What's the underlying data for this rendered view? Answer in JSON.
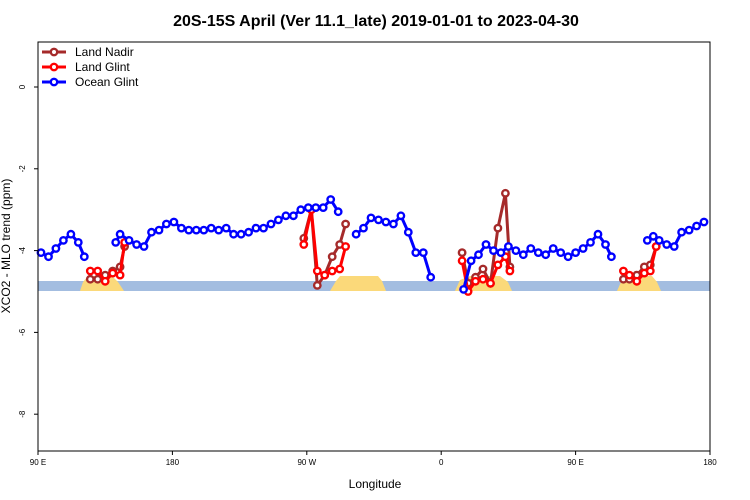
{
  "chart_data": {
    "type": "line",
    "title": "20S-15S April (Ver 11.1_late)   2019-01-01 to 2023-04-30",
    "xlabel": "Longitude",
    "ylabel": "XCO2 - MLO trend (ppm)",
    "xlim": [
      -90,
      360
    ],
    "ylim": [
      -8.9,
      1.1
    ],
    "x_ticks": [
      {
        "value": -90,
        "label": "90 E"
      },
      {
        "value": 0,
        "label": "180"
      },
      {
        "value": 90,
        "label": "90 W"
      },
      {
        "value": 180,
        "label": "0"
      },
      {
        "value": 270,
        "label": "90 E"
      },
      {
        "value": 360,
        "label": "180"
      }
    ],
    "y_ticks": [
      {
        "value": 0,
        "label": "0"
      },
      {
        "value": -2,
        "label": "-2"
      },
      {
        "value": -4,
        "label": "-4"
      },
      {
        "value": -6,
        "label": "-6"
      },
      {
        "value": -8,
        "label": "-8"
      }
    ],
    "grid": false,
    "legend_position": "top-left",
    "series": [
      {
        "name": "Land Nadir",
        "color": "#a52a2a",
        "segments": [
          [
            [
              -55,
              -4.7
            ],
            [
              -50,
              -4.7
            ],
            [
              -45,
              -4.6
            ],
            [
              -40,
              -4.5
            ],
            [
              -35,
              -4.4
            ],
            [
              -32,
              -3.9
            ]
          ],
          [
            [
              88,
              -3.7
            ],
            [
              93,
              -3.0
            ],
            [
              97,
              -4.85
            ],
            [
              102,
              -4.6
            ],
            [
              107,
              -4.15
            ],
            [
              112,
              -3.85
            ],
            [
              116,
              -3.35
            ]
          ],
          [
            [
              194,
              -4.05
            ],
            [
              198,
              -4.8
            ],
            [
              203,
              -4.65
            ],
            [
              208,
              -4.45
            ],
            [
              213,
              -4.8
            ],
            [
              218,
              -3.45
            ],
            [
              223,
              -2.6
            ],
            [
              226,
              -4.4
            ]
          ],
          [
            [
              302,
              -4.7
            ],
            [
              306,
              -4.7
            ],
            [
              311,
              -4.6
            ],
            [
              316,
              -4.4
            ],
            [
              320,
              -4.35
            ],
            [
              324,
              -3.9
            ]
          ]
        ]
      },
      {
        "name": "Land Glint",
        "color": "#ff0000",
        "segments": [
          [
            [
              -55,
              -4.5
            ],
            [
              -50,
              -4.5
            ],
            [
              -45,
              -4.75
            ],
            [
              -40,
              -4.55
            ],
            [
              -35,
              -4.6
            ],
            [
              -32,
              -3.8
            ]
          ],
          [
            [
              88,
              -3.85
            ],
            [
              93,
              -3.0
            ],
            [
              97,
              -4.5
            ],
            [
              102,
              -4.6
            ],
            [
              107,
              -4.5
            ],
            [
              112,
              -4.45
            ],
            [
              116,
              -3.9
            ]
          ],
          [
            [
              194,
              -4.25
            ],
            [
              198,
              -5.0
            ],
            [
              203,
              -4.75
            ],
            [
              208,
              -4.7
            ],
            [
              213,
              -4.8
            ],
            [
              218,
              -4.35
            ],
            [
              223,
              -4.15
            ],
            [
              226,
              -4.5
            ]
          ],
          [
            [
              302,
              -4.5
            ],
            [
              306,
              -4.6
            ],
            [
              311,
              -4.75
            ],
            [
              316,
              -4.55
            ],
            [
              320,
              -4.5
            ],
            [
              324,
              -3.9
            ]
          ]
        ]
      },
      {
        "name": "Ocean Glint",
        "color": "#0000ff",
        "segments": [
          [
            [
              -88,
              -4.05
            ],
            [
              -83,
              -4.15
            ],
            [
              -78,
              -3.95
            ],
            [
              -73,
              -3.75
            ],
            [
              -68,
              -3.6
            ],
            [
              -63,
              -3.8
            ],
            [
              -59,
              -4.15
            ]
          ],
          [
            [
              -38,
              -3.8
            ],
            [
              -35,
              -3.6
            ],
            [
              -29,
              -3.75
            ],
            [
              -24,
              -3.85
            ],
            [
              -19,
              -3.9
            ],
            [
              -14,
              -3.55
            ],
            [
              -9,
              -3.5
            ],
            [
              -4,
              -3.35
            ],
            [
              1,
              -3.3
            ],
            [
              6,
              -3.45
            ],
            [
              11,
              -3.5
            ],
            [
              16,
              -3.5
            ],
            [
              21,
              -3.5
            ],
            [
              26,
              -3.45
            ],
            [
              31,
              -3.5
            ],
            [
              36,
              -3.45
            ],
            [
              41,
              -3.6
            ],
            [
              46,
              -3.6
            ],
            [
              51,
              -3.55
            ],
            [
              56,
              -3.45
            ],
            [
              61,
              -3.45
            ],
            [
              66,
              -3.35
            ],
            [
              71,
              -3.25
            ],
            [
              76,
              -3.15
            ],
            [
              81,
              -3.15
            ],
            [
              86,
              -3.0
            ],
            [
              91,
              -2.95
            ],
            [
              96,
              -2.95
            ],
            [
              101,
              -2.95
            ],
            [
              106,
              -2.75
            ],
            [
              111,
              -3.05
            ]
          ],
          [
            [
              123,
              -3.6
            ],
            [
              128,
              -3.45
            ],
            [
              133,
              -3.2
            ],
            [
              138,
              -3.25
            ],
            [
              143,
              -3.3
            ],
            [
              148,
              -3.35
            ],
            [
              153,
              -3.15
            ],
            [
              158,
              -3.55
            ],
            [
              163,
              -4.05
            ],
            [
              168,
              -4.05
            ],
            [
              173,
              -4.65
            ]
          ],
          [
            [
              195,
              -4.95
            ],
            [
              200,
              -4.25
            ],
            [
              205,
              -4.1
            ],
            [
              210,
              -3.85
            ],
            [
              215,
              -4.0
            ],
            [
              220,
              -4.05
            ],
            [
              225,
              -3.9
            ],
            [
              230,
              -4.0
            ],
            [
              235,
              -4.1
            ],
            [
              240,
              -3.95
            ],
            [
              245,
              -4.05
            ],
            [
              250,
              -4.1
            ],
            [
              255,
              -3.95
            ],
            [
              260,
              -4.05
            ],
            [
              265,
              -4.15
            ],
            [
              270,
              -4.05
            ],
            [
              275,
              -3.95
            ],
            [
              280,
              -3.8
            ],
            [
              285,
              -3.6
            ],
            [
              290,
              -3.85
            ],
            [
              294,
              -4.15
            ]
          ],
          [
            [
              318,
              -3.75
            ],
            [
              322,
              -3.65
            ],
            [
              326,
              -3.75
            ],
            [
              331,
              -3.85
            ],
            [
              336,
              -3.9
            ],
            [
              341,
              -3.55
            ],
            [
              346,
              -3.5
            ],
            [
              351,
              -3.4
            ],
            [
              356,
              -3.3
            ]
          ]
        ]
      }
    ]
  }
}
